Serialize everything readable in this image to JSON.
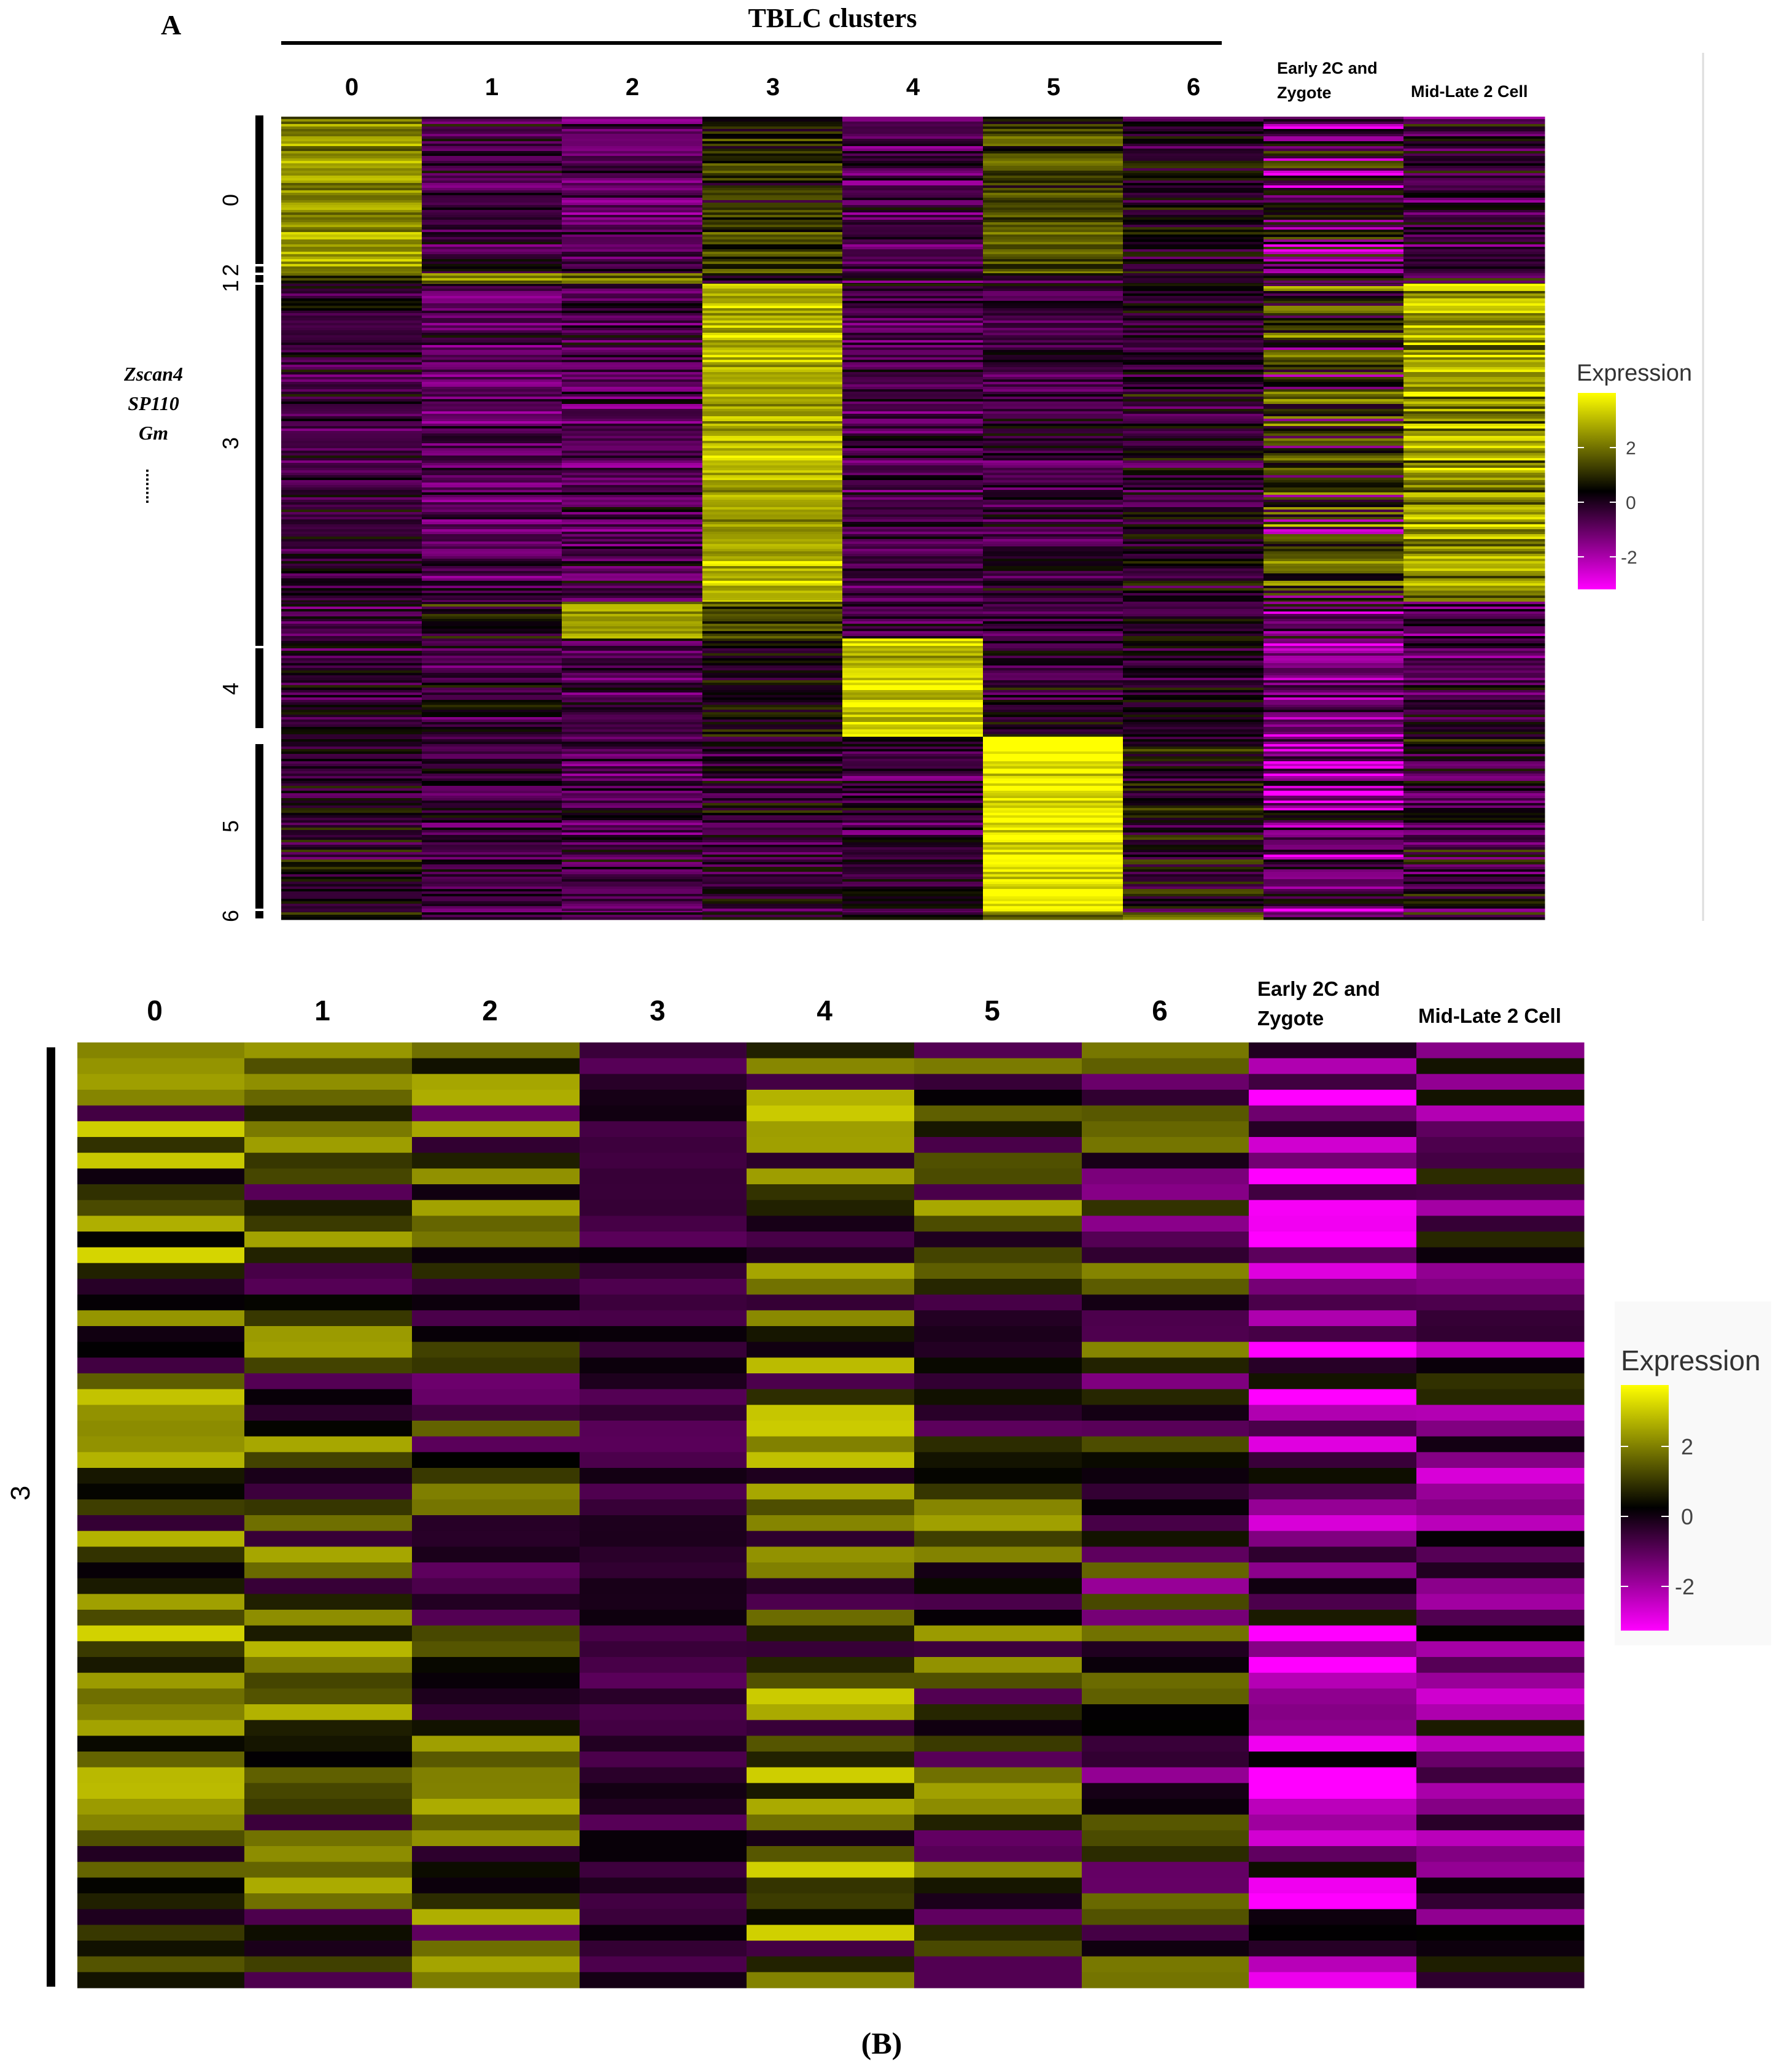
{
  "figure": {
    "panel_a_label": "A",
    "panel_b_label": "(B)"
  },
  "chart_data": [
    {
      "type": "heatmap",
      "panel": "A",
      "title": "TBLC clusters",
      "columns": [
        "0",
        "1",
        "2",
        "3",
        "4",
        "5",
        "6",
        "Early 2C and Zygote",
        "Mid-Late 2 Cell"
      ],
      "row_groups": [
        "0",
        "2",
        "1",
        "3",
        "4",
        "5",
        "6"
      ],
      "row_annotation": [
        "Zscan4",
        "SP110",
        "Gm",
        "........"
      ],
      "legend_title": "Expression",
      "legend_ticks": [
        "2",
        "0",
        "-2"
      ],
      "value_range": [
        -3,
        3
      ],
      "colors": {
        "low": "#ff00ff",
        "mid": "#000000",
        "high": "#ffff00"
      }
    },
    {
      "type": "heatmap",
      "panel": "B",
      "title": "",
      "columns": [
        "0",
        "1",
        "2",
        "3",
        "4",
        "5",
        "6",
        "Early 2C and Zygote",
        "Mid-Late 2 Cell"
      ],
      "row_groups": [
        "3"
      ],
      "row_count": 60,
      "legend_title": "Expression",
      "legend_ticks": [
        "2",
        "0",
        "-2"
      ],
      "value_range": [
        -3,
        3
      ],
      "colors": {
        "low": "#ff00ff",
        "mid": "#000000",
        "high": "#ffff00"
      }
    }
  ]
}
